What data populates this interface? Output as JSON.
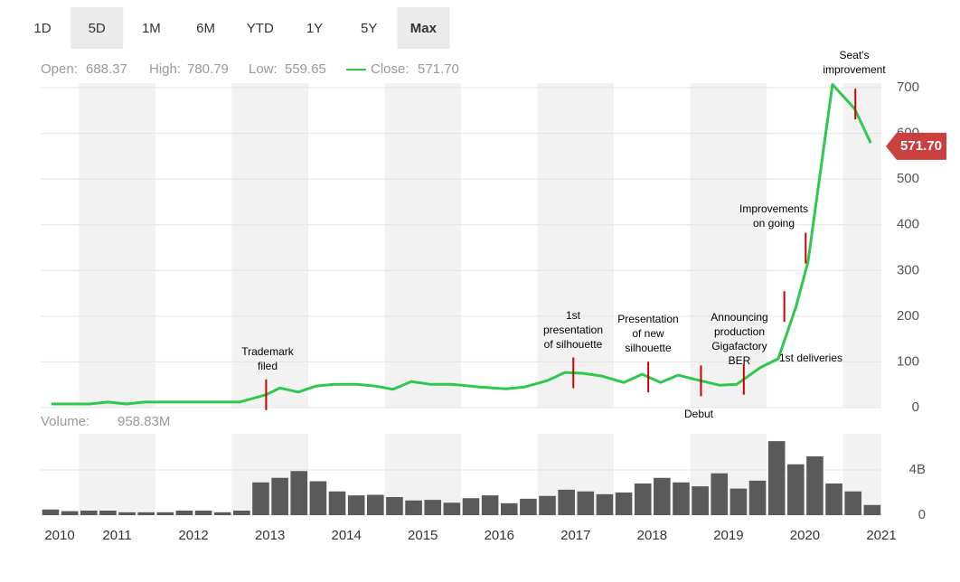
{
  "range_tabs": [
    "1D",
    "5D",
    "1M",
    "6M",
    "YTD",
    "1Y",
    "5Y",
    "Max"
  ],
  "stats": [
    {
      "label": "Open:",
      "value": "688.37"
    },
    {
      "label": "High:",
      "value": "780.79"
    },
    {
      "label": "Low:",
      "value": "559.65"
    }
  ],
  "chart_data": [
    {
      "type": "line",
      "legend": "Close:",
      "close": {
        "value": 571.7,
        "label": "571.70"
      },
      "color": "#2ec84e",
      "x": [
        2010.14,
        2010.64,
        2010.88,
        2011.12,
        2011.36,
        2011.83,
        2012.6,
        2012.95,
        2013.13,
        2013.37,
        2013.6,
        2013.84,
        2014.14,
        2014.38,
        2014.61,
        2014.85,
        2015.09,
        2015.38,
        2015.74,
        2016.09,
        2016.33,
        2016.63,
        2016.86,
        2017.1,
        2017.34,
        2017.63,
        2017.87,
        2018.11,
        2018.34,
        2018.58,
        2018.88,
        2019.11,
        2019.41,
        2019.65,
        2019.88,
        2020.04,
        2020.36,
        2020.65,
        2020.86
      ],
      "values": [
        8,
        8,
        12,
        8,
        12,
        12,
        12,
        28,
        43,
        34,
        47,
        51,
        51,
        47,
        40,
        57,
        51,
        51,
        45,
        41,
        45,
        59,
        77,
        75,
        69,
        55,
        73,
        55,
        71,
        61,
        49,
        51,
        87,
        107,
        219,
        318,
        707,
        654,
        579
      ],
      "xlim": [
        2010,
        2021
      ],
      "ylim": [
        0,
        710
      ],
      "yticks": [
        0,
        100,
        200,
        300,
        400,
        500,
        600,
        700
      ],
      "grid": true,
      "annotations": [
        {
          "text": [
            "Trademark",
            "filed"
          ],
          "x": 2012.95
        },
        {
          "text": [
            "1st",
            "presentation",
            "of silhouette"
          ],
          "x": 2016.97
        },
        {
          "text": [
            "Presentation",
            "of new",
            "silhouette"
          ],
          "x": 2017.95
        },
        {
          "text": [
            "Debut"
          ],
          "x": 2018.64
        },
        {
          "text": [
            "Announcing",
            "production",
            "Gigafactory",
            "BER"
          ],
          "x": 2019.2
        },
        {
          "text": [
            "1st deliveries"
          ],
          "x": 2019.73
        },
        {
          "text": [
            "Improvements",
            "on going"
          ],
          "x": 2020.01
        },
        {
          "text": [
            "Seat's",
            "improvement"
          ],
          "x": 2020.66
        }
      ]
    },
    {
      "type": "bar",
      "title": "Volume:",
      "subtitle": "958.83M",
      "color": "#5a5a5a",
      "x": [
        2010.13,
        2010.38,
        2010.63,
        2010.88,
        2011.13,
        2011.38,
        2011.63,
        2011.88,
        2012.13,
        2012.38,
        2012.63,
        2012.88,
        2013.13,
        2013.38,
        2013.63,
        2013.88,
        2014.13,
        2014.38,
        2014.63,
        2014.88,
        2015.13,
        2015.38,
        2015.63,
        2015.88,
        2016.13,
        2016.38,
        2016.63,
        2016.88,
        2017.13,
        2017.38,
        2017.63,
        2017.88,
        2018.13,
        2018.38,
        2018.63,
        2018.88,
        2019.13,
        2019.38,
        2019.63,
        2019.88,
        2020.13,
        2020.38,
        2020.63,
        2020.88
      ],
      "values": [
        0.5,
        0.35,
        0.4,
        0.4,
        0.25,
        0.25,
        0.25,
        0.4,
        0.4,
        0.25,
        0.4,
        2.9,
        3.3,
        3.9,
        3.0,
        2.1,
        1.75,
        1.8,
        1.6,
        1.3,
        1.35,
        1.1,
        1.5,
        1.75,
        1.05,
        1.45,
        1.7,
        2.25,
        2.1,
        1.85,
        2.0,
        2.8,
        3.3,
        2.9,
        2.55,
        3.7,
        2.35,
        3.05,
        6.55,
        4.5,
        5.2,
        2.8,
        2.1,
        0.9
      ],
      "xlim": [
        2010,
        2021
      ],
      "xticks": [
        2010,
        2011,
        2012,
        2013,
        2014,
        2015,
        2016,
        2017,
        2018,
        2019,
        2020,
        2021
      ],
      "ylim": [
        0,
        7.2
      ],
      "yticks": [
        0,
        {
          "value": 4,
          "label": "4B"
        }
      ],
      "grid": true
    }
  ]
}
